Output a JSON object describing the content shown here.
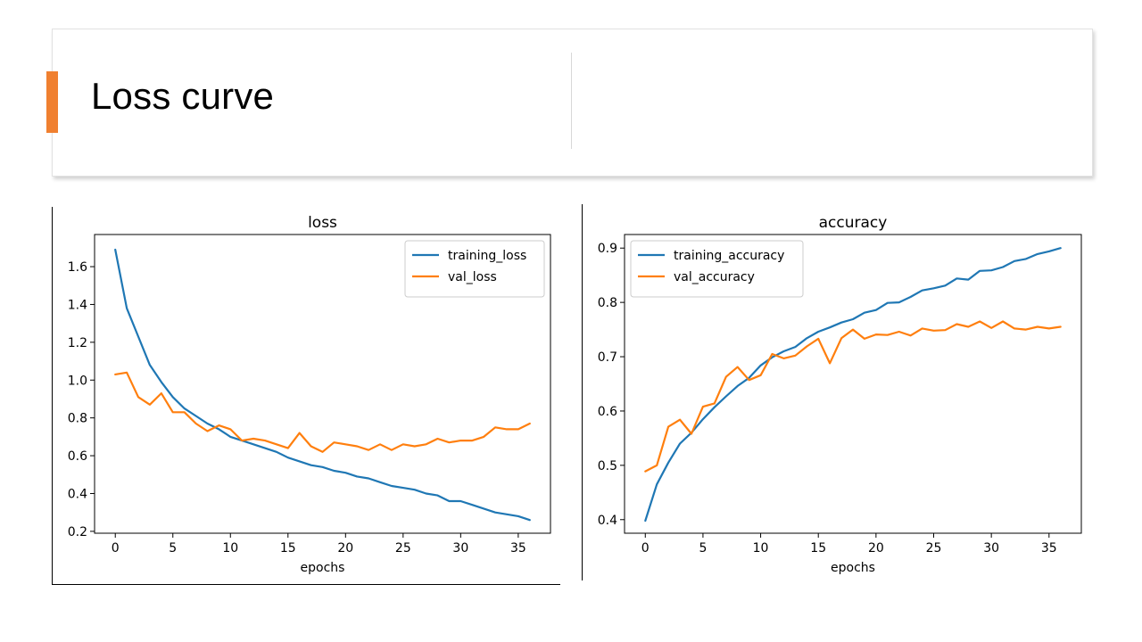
{
  "slide": {
    "title": "Loss curve",
    "accent_color": "#f08030"
  },
  "chart_data": [
    {
      "type": "line",
      "title": "loss",
      "xlabel": "epochs",
      "ylabel": "",
      "xlim": [
        -1.8,
        37.8
      ],
      "ylim": [
        0.19,
        1.77
      ],
      "xticks": [
        0,
        5,
        10,
        15,
        20,
        25,
        30,
        35
      ],
      "yticks": [
        0.2,
        0.4,
        0.6,
        0.8,
        1.0,
        1.2,
        1.4,
        1.6
      ],
      "ytick_format": 1,
      "legend_position": "top-right",
      "grid": false,
      "x": [
        0,
        1,
        2,
        3,
        4,
        5,
        6,
        7,
        8,
        9,
        10,
        11,
        12,
        13,
        14,
        15,
        16,
        17,
        18,
        19,
        20,
        21,
        22,
        23,
        24,
        25,
        26,
        27,
        28,
        29,
        30,
        31,
        32,
        33,
        34,
        35,
        36
      ],
      "series": [
        {
          "name": "training_loss",
          "color": "#1f77b4",
          "values": [
            1.69,
            1.38,
            1.23,
            1.08,
            0.99,
            0.91,
            0.85,
            0.81,
            0.77,
            0.74,
            0.7,
            0.68,
            0.66,
            0.64,
            0.62,
            0.59,
            0.57,
            0.55,
            0.54,
            0.52,
            0.51,
            0.49,
            0.48,
            0.46,
            0.44,
            0.43,
            0.42,
            0.4,
            0.39,
            0.36,
            0.36,
            0.34,
            0.32,
            0.3,
            0.29,
            0.28,
            0.26
          ]
        },
        {
          "name": "val_loss",
          "color": "#ff7f0e",
          "values": [
            1.03,
            1.04,
            0.91,
            0.87,
            0.93,
            0.83,
            0.83,
            0.77,
            0.73,
            0.76,
            0.74,
            0.68,
            0.69,
            0.68,
            0.66,
            0.64,
            0.72,
            0.65,
            0.62,
            0.67,
            0.66,
            0.65,
            0.63,
            0.66,
            0.63,
            0.66,
            0.65,
            0.66,
            0.69,
            0.67,
            0.68,
            0.68,
            0.7,
            0.75,
            0.74,
            0.74,
            0.77
          ]
        }
      ]
    },
    {
      "type": "line",
      "title": "accuracy",
      "xlabel": "epochs",
      "ylabel": "",
      "xlim": [
        -1.8,
        37.8
      ],
      "ylim": [
        0.375,
        0.925
      ],
      "xticks": [
        0,
        5,
        10,
        15,
        20,
        25,
        30,
        35
      ],
      "yticks": [
        0.4,
        0.5,
        0.6,
        0.7,
        0.8,
        0.9
      ],
      "ytick_format": 1,
      "legend_position": "top-left",
      "grid": false,
      "x": [
        0,
        1,
        2,
        3,
        4,
        5,
        6,
        7,
        8,
        9,
        10,
        11,
        12,
        13,
        14,
        15,
        16,
        17,
        18,
        19,
        20,
        21,
        22,
        23,
        24,
        25,
        26,
        27,
        28,
        29,
        30,
        31,
        32,
        33,
        34,
        35,
        36
      ],
      "series": [
        {
          "name": "training_accuracy",
          "color": "#1f77b4",
          "values": [
            0.398,
            0.465,
            0.505,
            0.54,
            0.56,
            0.585,
            0.607,
            0.627,
            0.646,
            0.661,
            0.684,
            0.699,
            0.71,
            0.718,
            0.734,
            0.746,
            0.754,
            0.763,
            0.769,
            0.781,
            0.786,
            0.799,
            0.8,
            0.81,
            0.822,
            0.826,
            0.831,
            0.844,
            0.842,
            0.858,
            0.859,
            0.865,
            0.876,
            0.88,
            0.889,
            0.894,
            0.9
          ]
        },
        {
          "name": "val_accuracy",
          "color": "#ff7f0e",
          "values": [
            0.489,
            0.5,
            0.571,
            0.584,
            0.558,
            0.608,
            0.614,
            0.663,
            0.681,
            0.657,
            0.666,
            0.705,
            0.697,
            0.702,
            0.719,
            0.733,
            0.688,
            0.734,
            0.75,
            0.733,
            0.741,
            0.74,
            0.746,
            0.739,
            0.752,
            0.748,
            0.749,
            0.76,
            0.755,
            0.765,
            0.753,
            0.765,
            0.752,
            0.75,
            0.755,
            0.752,
            0.755
          ]
        }
      ]
    }
  ]
}
